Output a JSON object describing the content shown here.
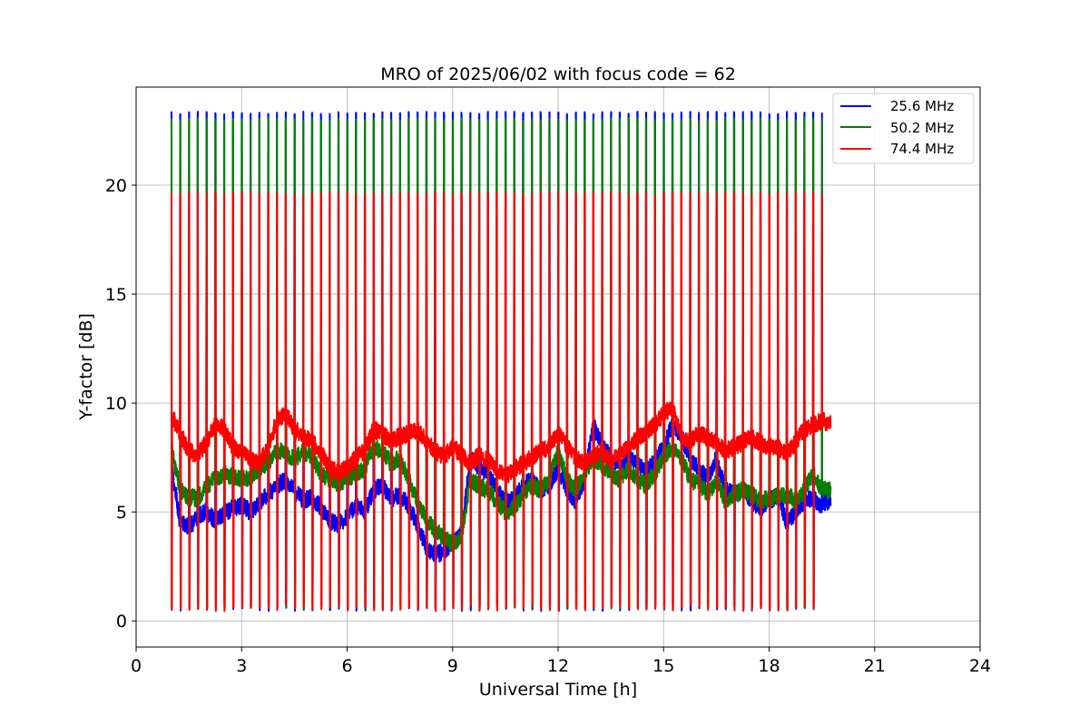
{
  "chart_data": {
    "type": "line",
    "title": "MRO of 2025/06/02 with focus code = 62",
    "xlabel": "Universal Time [h]",
    "ylabel": "Y-factor [dB]",
    "xlim": [
      0,
      24
    ],
    "ylim": [
      -1.2,
      24.5
    ],
    "xticks": [
      0,
      3,
      6,
      9,
      12,
      15,
      18,
      21,
      24
    ],
    "yticks": [
      0,
      5,
      10,
      15,
      20
    ],
    "grid": true,
    "legend_position": "top-right",
    "pulse_period_h": 0.25,
    "pulse_start_h": 1.0,
    "pulse_end_h": 19.5,
    "data_end_h": 19.75,
    "series": [
      {
        "name": "25.6 MHz",
        "color": "#0000ff",
        "pulse_high": 23.3,
        "pulse_low": 0.6,
        "x": [
          1.0,
          1.25,
          1.5,
          1.75,
          2.0,
          2.25,
          2.5,
          2.75,
          3.0,
          3.25,
          3.5,
          3.75,
          4.0,
          4.25,
          4.5,
          4.75,
          5.0,
          5.25,
          5.5,
          5.75,
          6.0,
          6.25,
          6.5,
          6.75,
          7.0,
          7.25,
          7.5,
          7.75,
          8.0,
          8.25,
          8.5,
          8.75,
          9.0,
          9.25,
          9.5,
          9.75,
          10.0,
          10.25,
          10.5,
          10.75,
          11.0,
          11.25,
          11.5,
          11.75,
          12.0,
          12.25,
          12.5,
          12.75,
          13.0,
          13.25,
          13.5,
          13.75,
          14.0,
          14.25,
          14.5,
          14.75,
          15.0,
          15.25,
          15.5,
          15.75,
          16.0,
          16.25,
          16.5,
          16.75,
          17.0,
          17.25,
          17.5,
          17.75,
          18.0,
          18.25,
          18.5,
          18.75,
          19.0,
          19.25,
          19.5,
          19.75
        ],
        "y": [
          7.2,
          4.5,
          4.3,
          4.8,
          5.0,
          4.6,
          4.9,
          5.2,
          5.3,
          5.0,
          5.4,
          5.8,
          6.2,
          6.5,
          6.0,
          5.5,
          5.7,
          5.2,
          4.6,
          4.4,
          4.8,
          5.3,
          5.0,
          6.0,
          6.2,
          5.6,
          5.8,
          5.3,
          4.4,
          3.4,
          3.0,
          3.2,
          3.6,
          4.0,
          7.5,
          7.0,
          6.8,
          6.0,
          5.4,
          5.6,
          6.2,
          6.5,
          6.0,
          6.2,
          7.0,
          6.0,
          5.5,
          6.5,
          9.0,
          8.0,
          7.5,
          7.0,
          7.5,
          7.2,
          6.8,
          7.4,
          8.0,
          9.0,
          8.5,
          7.5,
          7.0,
          6.5,
          7.5,
          6.0,
          5.8,
          6.0,
          5.5,
          5.2,
          5.5,
          5.8,
          4.5,
          5.0,
          5.5,
          5.6,
          5.3,
          5.6
        ]
      },
      {
        "name": "50.2 MHz",
        "color": "#008000",
        "pulse_high": 23.0,
        "pulse_low": 0.7,
        "x": [
          1.0,
          1.25,
          1.5,
          1.75,
          2.0,
          2.25,
          2.5,
          2.75,
          3.0,
          3.25,
          3.5,
          3.75,
          4.0,
          4.25,
          4.5,
          4.75,
          5.0,
          5.25,
          5.5,
          5.75,
          6.0,
          6.25,
          6.5,
          6.75,
          7.0,
          7.25,
          7.5,
          7.75,
          8.0,
          8.25,
          8.5,
          8.75,
          9.0,
          9.25,
          9.5,
          9.75,
          10.0,
          10.25,
          10.5,
          10.75,
          11.0,
          11.25,
          11.5,
          11.75,
          12.0,
          12.25,
          12.5,
          12.75,
          13.0,
          13.25,
          13.5,
          13.75,
          14.0,
          14.25,
          14.5,
          14.75,
          15.0,
          15.25,
          15.5,
          15.75,
          16.0,
          16.25,
          16.5,
          16.75,
          17.0,
          17.25,
          17.5,
          17.75,
          18.0,
          18.25,
          18.5,
          18.75,
          19.0,
          19.25,
          19.5,
          19.75
        ],
        "y": [
          7.9,
          6.0,
          5.7,
          5.6,
          6.2,
          6.5,
          6.8,
          6.6,
          6.5,
          6.6,
          7.0,
          7.3,
          7.8,
          7.7,
          7.4,
          7.8,
          7.5,
          6.8,
          6.5,
          6.3,
          6.5,
          6.8,
          7.0,
          8.0,
          7.8,
          7.2,
          7.5,
          6.5,
          5.5,
          4.6,
          4.2,
          3.8,
          3.5,
          3.8,
          6.5,
          6.2,
          6.0,
          5.5,
          5.0,
          5.2,
          5.8,
          6.2,
          6.0,
          6.5,
          7.8,
          6.5,
          6.0,
          6.8,
          7.5,
          7.2,
          6.8,
          6.5,
          7.0,
          6.5,
          6.2,
          6.8,
          7.5,
          8.0,
          7.5,
          6.5,
          6.3,
          5.8,
          6.5,
          5.5,
          5.8,
          6.0,
          5.8,
          5.5,
          5.6,
          5.8,
          5.8,
          5.5,
          6.0,
          6.8,
          6.0,
          6.0
        ]
      },
      {
        "name": "74.4 MHz",
        "color": "#ff0000",
        "pulse_high": 19.6,
        "pulse_low": 0.6,
        "x": [
          1.0,
          1.25,
          1.5,
          1.75,
          2.0,
          2.25,
          2.5,
          2.75,
          3.0,
          3.25,
          3.5,
          3.75,
          4.0,
          4.25,
          4.5,
          4.75,
          5.0,
          5.25,
          5.5,
          5.75,
          6.0,
          6.25,
          6.5,
          6.75,
          7.0,
          7.25,
          7.5,
          7.75,
          8.0,
          8.25,
          8.5,
          8.75,
          9.0,
          9.25,
          9.5,
          9.75,
          10.0,
          10.25,
          10.5,
          10.75,
          11.0,
          11.25,
          11.5,
          11.75,
          12.0,
          12.25,
          12.5,
          12.75,
          13.0,
          13.25,
          13.5,
          13.75,
          14.0,
          14.25,
          14.5,
          14.75,
          15.0,
          15.25,
          15.5,
          15.75,
          16.0,
          16.25,
          16.5,
          16.75,
          17.0,
          17.25,
          17.5,
          17.75,
          18.0,
          18.25,
          18.5,
          18.75,
          19.0,
          19.25,
          19.5,
          19.75
        ],
        "y": [
          9.5,
          8.6,
          7.8,
          7.6,
          8.2,
          9.0,
          8.8,
          8.0,
          7.8,
          7.4,
          7.2,
          8.0,
          9.2,
          9.5,
          8.8,
          8.5,
          8.2,
          7.8,
          7.0,
          6.8,
          7.0,
          7.5,
          7.8,
          8.8,
          8.6,
          8.2,
          8.5,
          8.6,
          8.8,
          8.2,
          7.8,
          7.5,
          8.0,
          7.6,
          7.2,
          7.6,
          7.4,
          7.0,
          6.6,
          7.0,
          7.2,
          7.5,
          7.8,
          8.0,
          8.6,
          8.0,
          7.5,
          7.2,
          7.6,
          7.8,
          7.4,
          7.6,
          8.0,
          8.4,
          8.6,
          9.0,
          9.5,
          9.8,
          8.5,
          8.2,
          8.6,
          8.4,
          8.2,
          7.8,
          8.0,
          8.2,
          8.4,
          8.2,
          8.0,
          8.0,
          7.6,
          8.2,
          8.8,
          9.0,
          9.2,
          9.0
        ]
      }
    ]
  }
}
